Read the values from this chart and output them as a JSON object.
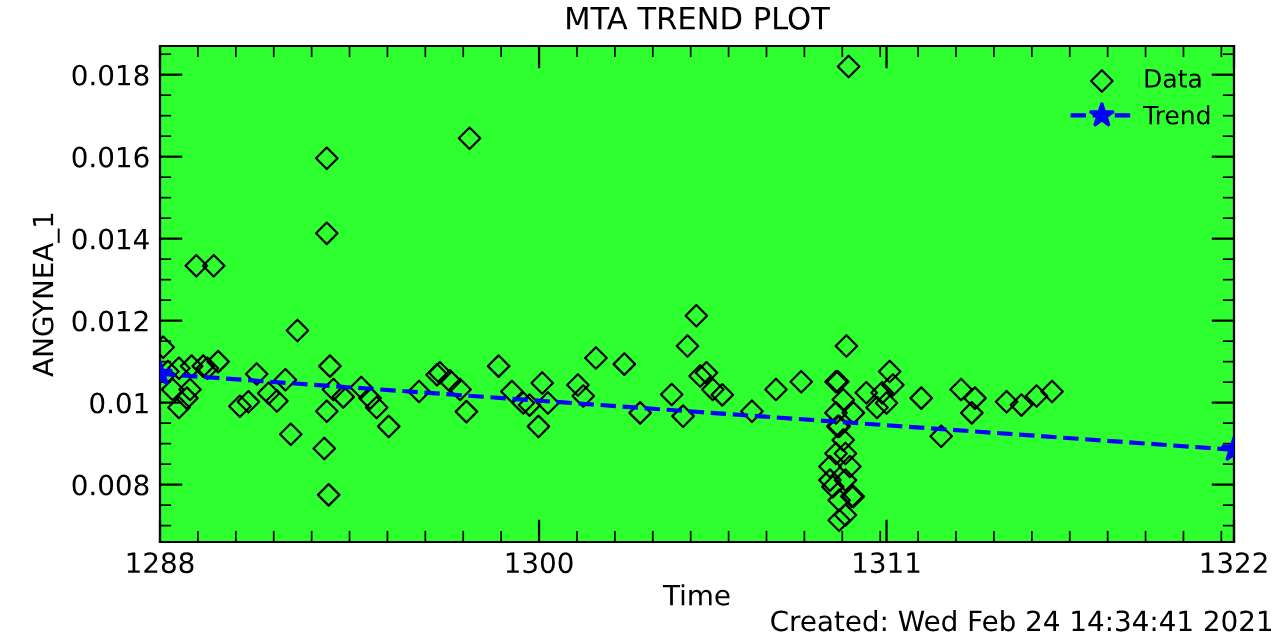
{
  "chart_data": {
    "type": "scatter",
    "title": "MTA TREND PLOT",
    "xlabel": "Time",
    "ylabel": "ANGYNEA_1",
    "annotations": [
      "Created: Wed Feb 24 14:34:41 2021"
    ],
    "xlim": [
      1288,
      1322
    ],
    "xticks": [
      1288,
      1300,
      1311,
      1322
    ],
    "ylim": [
      0.0066,
      0.0187
    ],
    "yticks": [
      0.008,
      0.01,
      0.012,
      0.014,
      0.016,
      0.018
    ],
    "grid": false,
    "legend": "top right",
    "series": [
      {
        "name": "Data",
        "type": "scatter",
        "color": "#000000",
        "marker": "diamond",
        "x": [
          1288.1,
          1288.25,
          1288.4,
          1288.6,
          1288.6,
          1288.85,
          1288.95,
          1289.0,
          1289.15,
          1289.37,
          1289.5,
          1289.7,
          1289.84,
          1290.53,
          1290.8,
          1291.06,
          1291.44,
          1291.7,
          1291.97,
          1292.14,
          1292.35,
          1293.28,
          1293.28,
          1293.38,
          1293.28,
          1293.2,
          1293.34,
          1293.49,
          1293.8,
          1294.37,
          1294.65,
          1294.86,
          1295.24,
          1296.2,
          1296.77,
          1296.86,
          1297.18,
          1297.5,
          1297.7,
          1297.8,
          1298.72,
          1299.14,
          1299.5,
          1299.7,
          1299.98,
          1300.1,
          1300.28,
          1301.23,
          1301.4,
          1301.8,
          1302.7,
          1303.2,
          1304.2,
          1304.56,
          1304.7,
          1304.98,
          1305.1,
          1305.3,
          1305.5,
          1305.8,
          1306.74,
          1307.5,
          1308.3,
          1309.4,
          1309.8,
          1309.73,
          1309.46,
          1309.63,
          1309.4,
          1309.5,
          1309.63,
          1309.4,
          1309.7,
          1309.21,
          1309.84,
          1309.21,
          1309.7,
          1309.3,
          1309.95,
          1309.5,
          1309.9,
          1309.5,
          1309.7,
          1309.46,
          1309.95,
          1310.36,
          1310.7,
          1310.86,
          1311.0,
          1311.1,
          1311.2,
          1312.1,
          1312.73,
          1313.36,
          1313.8,
          1313.7,
          1314.8,
          1315.27,
          1315.75,
          1316.24
        ],
        "values": [
          0.01135,
          0.01076,
          0.01032,
          0.01084,
          0.00988,
          0.01011,
          0.01032,
          0.01089,
          0.01334,
          0.01089,
          0.01084,
          0.01334,
          0.011,
          0.00991,
          0.01002,
          0.0107,
          0.01023,
          0.01004,
          0.01056,
          0.00923,
          0.01176,
          0.01596,
          0.01413,
          0.01089,
          0.00979,
          0.00888,
          0.00775,
          0.01032,
          0.01014,
          0.01037,
          0.01011,
          0.00988,
          0.00942,
          0.01027,
          0.01068,
          0.01073,
          0.01053,
          0.01032,
          0.00978,
          0.01645,
          0.01089,
          0.01027,
          0.00999,
          0.00994,
          0.00942,
          0.01048,
          0.00999,
          0.01043,
          0.01016,
          0.01109,
          0.01094,
          0.00975,
          0.0102,
          0.00967,
          0.01138,
          0.01212,
          0.01065,
          0.01073,
          0.01032,
          0.01019,
          0.00979,
          0.01032,
          0.01051,
          0.01051,
          0.0182,
          0.01138,
          0.01051,
          0.01007,
          0.00975,
          0.00942,
          0.00909,
          0.00876,
          0.00876,
          0.00844,
          0.00844,
          0.00811,
          0.00811,
          0.00795,
          0.00771,
          0.00762,
          0.00771,
          0.00713,
          0.00726,
          0.00942,
          0.00975,
          0.01024,
          0.00988,
          0.01024,
          0.00999,
          0.01076,
          0.01043,
          0.01011,
          0.00918,
          0.01032,
          0.01011,
          0.00975,
          0.01002,
          0.00994,
          0.01016,
          0.01027
        ]
      },
      {
        "name": "Trend",
        "type": "line",
        "color": "#0000ff",
        "marker": "star",
        "line_style": "dashed",
        "x": [
          1288,
          1322
        ],
        "values": [
          0.0107,
          0.00885
        ]
      }
    ]
  }
}
